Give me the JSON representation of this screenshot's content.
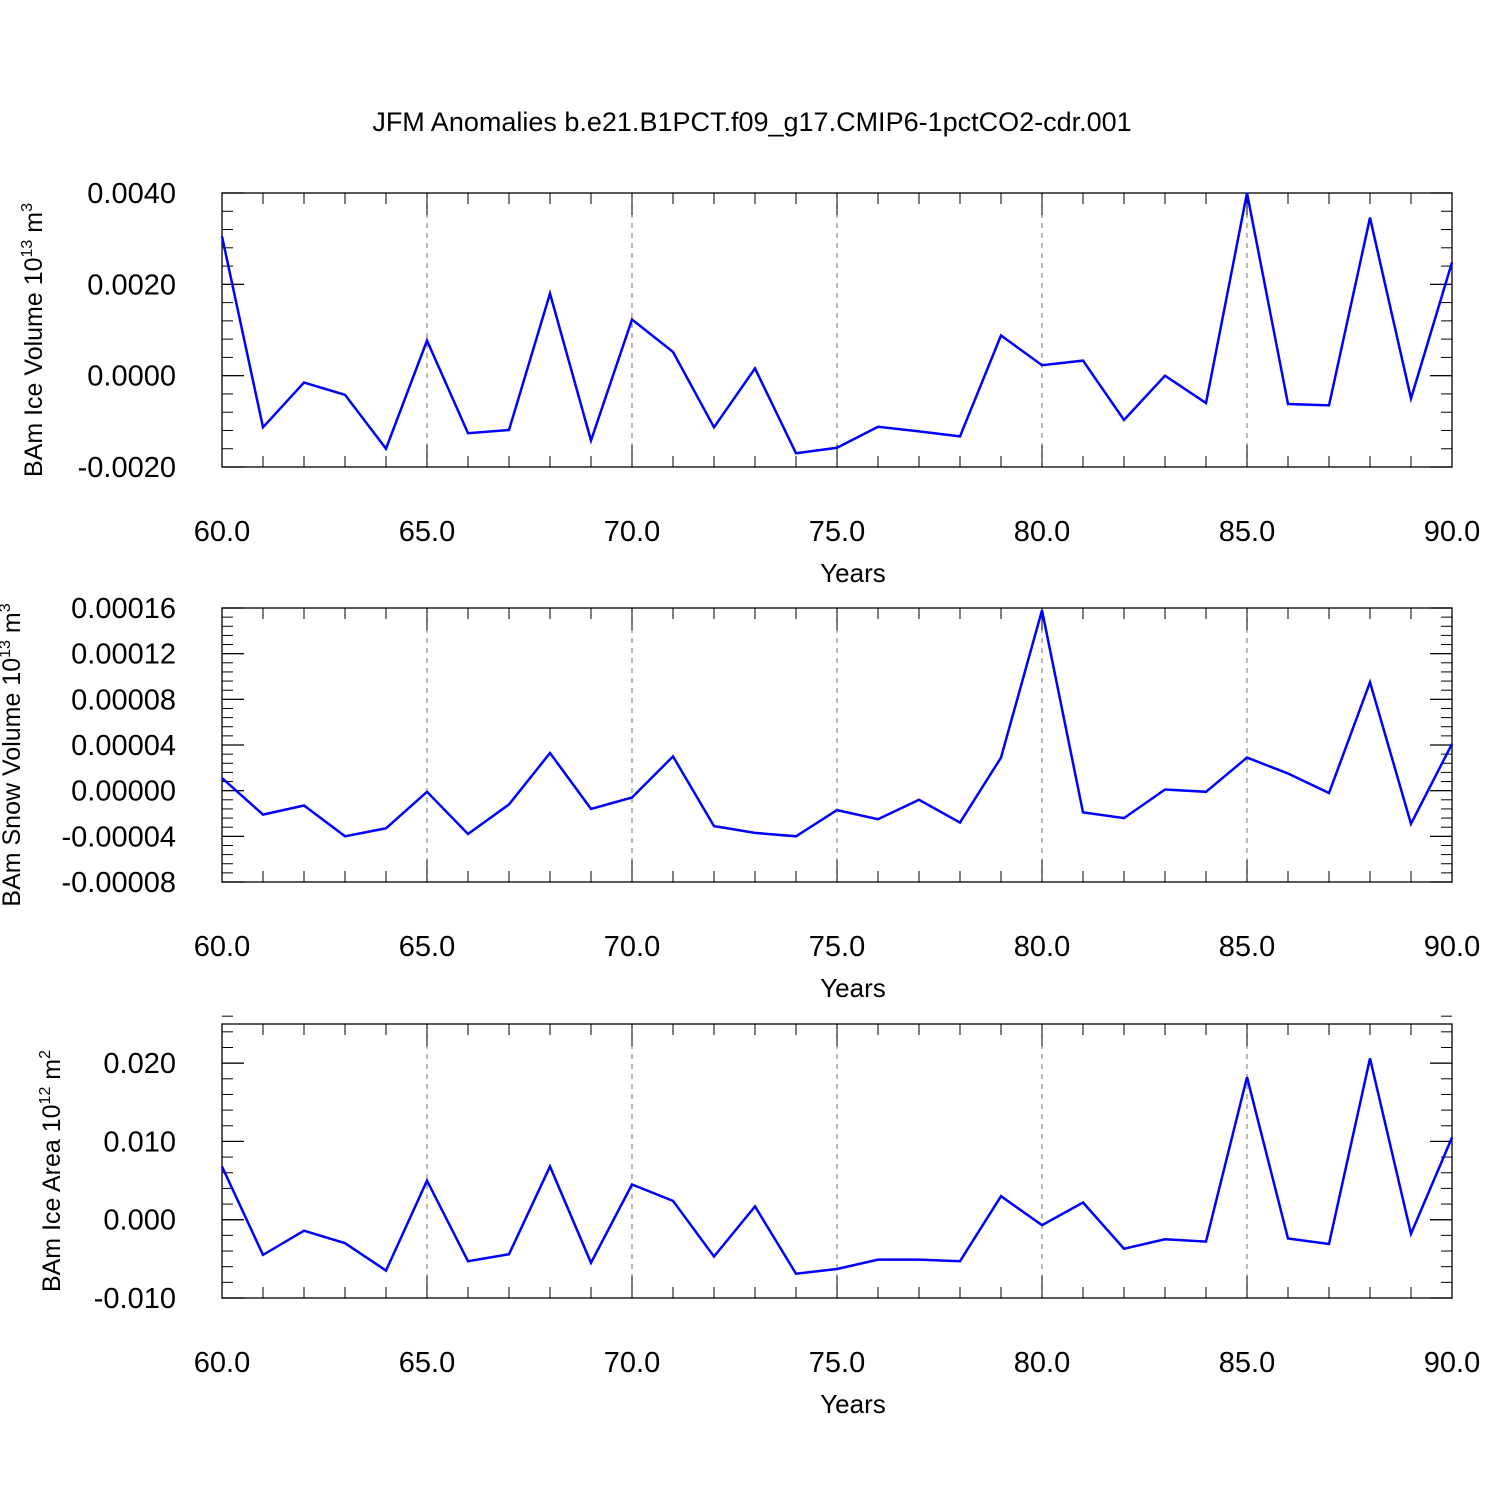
{
  "title": "JFM Anomalies b.e21.B1PCT.f09_g17.CMIP6-1pctCO2-cdr.001",
  "colors": {
    "line": "#0000ff",
    "axis": "#000000",
    "grid": "#888888",
    "background": "#ffffff"
  },
  "chart_data": [
    {
      "type": "line",
      "xlabel": "Years",
      "ylabel_main": "BAm Ice Volume 10",
      "ylabel_sup": "13",
      "ylabel_tail": " m",
      "ylabel_unit_sup": "3",
      "xlim": [
        60,
        90
      ],
      "ylim": [
        -0.002,
        0.004
      ],
      "x_ticks": [
        60,
        65,
        70,
        75,
        80,
        85,
        90
      ],
      "x_tick_labels": [
        "60.0",
        "65.0",
        "70.0",
        "75.0",
        "80.0",
        "85.0",
        "90.0"
      ],
      "y_ticks": [
        -0.002,
        0,
        0.002,
        0.004
      ],
      "y_tick_labels": [
        "-0.0020",
        "0.0000",
        "0.0020",
        "0.0040"
      ],
      "grid": "x-dashed",
      "series": [
        {
          "x": [
            60,
            61,
            62,
            63,
            64,
            65,
            66,
            67,
            68,
            69,
            70,
            71,
            72,
            73,
            74,
            75,
            76,
            77,
            78,
            79,
            80,
            81,
            82,
            83,
            84,
            85,
            86,
            87,
            88,
            89,
            90
          ],
          "values": [
            0.00305,
            -0.00113,
            -0.00015,
            -0.00042,
            -0.0016,
            0.00077,
            -0.00126,
            -0.00119,
            0.0018,
            -0.00142,
            0.00123,
            0.00052,
            -0.00113,
            0.00016,
            -0.0017,
            -0.00158,
            -0.00112,
            -0.00122,
            -0.00133,
            0.00088,
            0.00023,
            0.00033,
            -0.00097,
            0.0,
            -0.0006,
            0.004,
            -0.00062,
            -0.00065,
            0.00346,
            -0.0005,
            0.00248
          ]
        }
      ]
    },
    {
      "type": "line",
      "xlabel": "Years",
      "ylabel_main": "BAm Snow Volume 10",
      "ylabel_sup": "13",
      "ylabel_tail": " m",
      "ylabel_unit_sup": "3",
      "xlim": [
        60,
        90
      ],
      "ylim": [
        -8e-05,
        0.00016
      ],
      "x_ticks": [
        60,
        65,
        70,
        75,
        80,
        85,
        90
      ],
      "x_tick_labels": [
        "60.0",
        "65.0",
        "70.0",
        "75.0",
        "80.0",
        "85.0",
        "90.0"
      ],
      "y_ticks": [
        -8e-05,
        -4e-05,
        0,
        4e-05,
        8e-05,
        0.00012,
        0.00016
      ],
      "y_tick_labels": [
        "-0.00008",
        "-0.00004",
        "0.00000",
        "0.00004",
        "0.00008",
        "0.00012",
        "0.00016"
      ],
      "grid": "x-dashed",
      "series": [
        {
          "x": [
            60,
            61,
            62,
            63,
            64,
            65,
            66,
            67,
            68,
            69,
            70,
            71,
            72,
            73,
            74,
            75,
            76,
            77,
            78,
            79,
            80,
            81,
            82,
            83,
            84,
            85,
            86,
            87,
            88,
            89,
            90
          ],
          "values": [
            1.1e-05,
            -2.1e-05,
            -1.3e-05,
            -4e-05,
            -3.3e-05,
            -1e-06,
            -3.8e-05,
            -1.2e-05,
            3.3e-05,
            -1.6e-05,
            -6e-06,
            3e-05,
            -3.1e-05,
            -3.7e-05,
            -4e-05,
            -1.7e-05,
            -2.5e-05,
            -8e-06,
            -2.8e-05,
            2.9e-05,
            0.000158,
            -1.9e-05,
            -2.4e-05,
            1e-06,
            -1e-06,
            2.9e-05,
            1.5e-05,
            -2e-06,
            9.5e-05,
            -2.9e-05,
            4.1e-05
          ]
        }
      ]
    },
    {
      "type": "line",
      "xlabel": "Years",
      "ylabel_main": "BAm Ice Area 10",
      "ylabel_sup": "12",
      "ylabel_tail": " m",
      "ylabel_unit_sup": "2",
      "xlim": [
        60,
        90
      ],
      "ylim": [
        -0.01,
        0.025
      ],
      "x_ticks": [
        60,
        65,
        70,
        75,
        80,
        85,
        90
      ],
      "x_tick_labels": [
        "60.0",
        "65.0",
        "70.0",
        "75.0",
        "80.0",
        "85.0",
        "90.0"
      ],
      "y_ticks": [
        -0.01,
        0,
        0.01,
        0.02
      ],
      "y_tick_labels": [
        "-0.010",
        "0.000",
        "0.010",
        "0.020"
      ],
      "grid": "x-dashed",
      "series": [
        {
          "x": [
            60,
            61,
            62,
            63,
            64,
            65,
            66,
            67,
            68,
            69,
            70,
            71,
            72,
            73,
            74,
            75,
            76,
            77,
            78,
            79,
            80,
            81,
            82,
            83,
            84,
            85,
            86,
            87,
            88,
            89,
            90
          ],
          "values": [
            0.0068,
            -0.0045,
            -0.0014,
            -0.003,
            -0.0065,
            0.005,
            -0.0053,
            -0.0044,
            0.0068,
            -0.0055,
            0.0045,
            0.0024,
            -0.0047,
            0.0017,
            -0.0069,
            -0.0063,
            -0.0051,
            -0.0051,
            -0.0053,
            0.003,
            -0.0007,
            0.0022,
            -0.0037,
            -0.0025,
            -0.0028,
            0.0182,
            -0.0024,
            -0.0031,
            0.0206,
            -0.0018,
            0.0105
          ]
        }
      ]
    }
  ]
}
